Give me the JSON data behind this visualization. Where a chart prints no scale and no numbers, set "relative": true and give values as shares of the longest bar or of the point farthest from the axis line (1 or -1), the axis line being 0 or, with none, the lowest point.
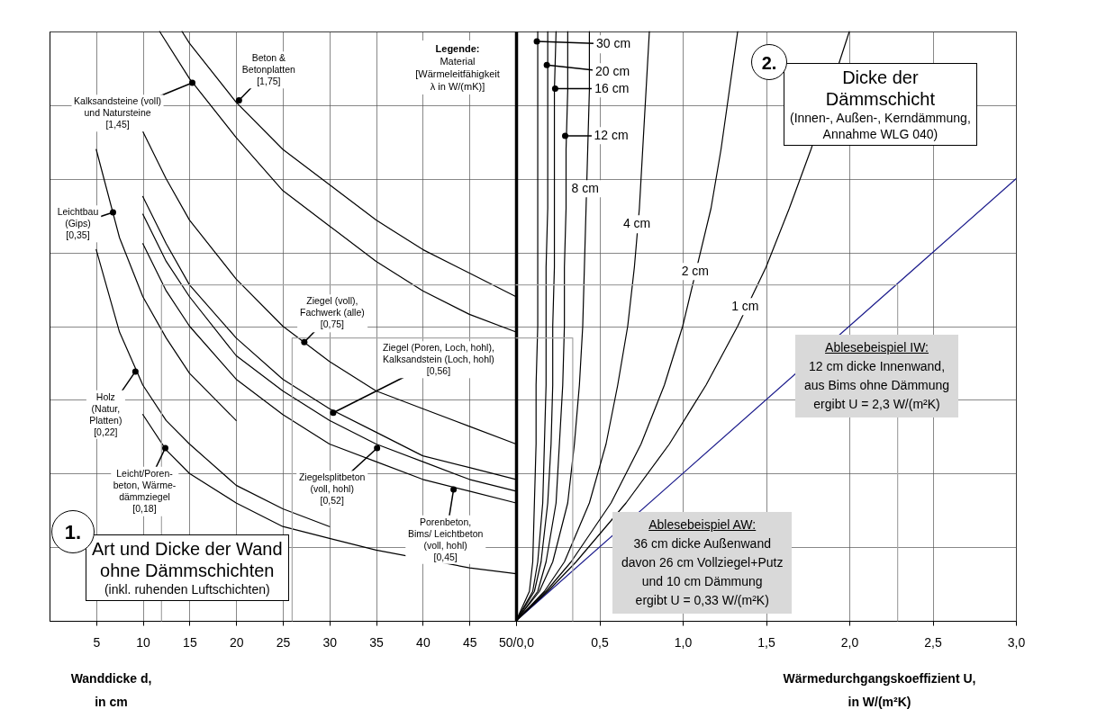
{
  "chart_data": [
    {
      "type": "line",
      "relative": true,
      "xlabel": "Wanddicke d,\nin cm",
      "xlim": [
        0,
        50
      ],
      "xticks": [
        5,
        10,
        15,
        20,
        25,
        30,
        35,
        40,
        45,
        {
          "value": 50,
          "label": "50/0,0"
        }
      ],
      "grid": true,
      "tick_labels": "x",
      "series": [
        {
          "color": "#000000",
          "x": [
            14.2,
            15,
            20,
            25,
            30,
            35,
            40,
            45,
            50
          ],
          "values": [
            1.0,
            0.98,
            0.88,
            0.8,
            0.74,
            0.68,
            0.63,
            0.59,
            0.55
          ]
        },
        {
          "color": "#000000",
          "x": [
            11.8,
            15,
            20,
            25,
            30,
            35,
            40,
            45,
            50
          ],
          "values": [
            1.0,
            0.92,
            0.82,
            0.73,
            0.67,
            0.61,
            0.56,
            0.52,
            0.49
          ]
        },
        {
          "color": "#000000",
          "x": [
            5,
            7.5,
            10,
            12.5,
            15,
            17.5,
            20
          ],
          "values": [
            0.8,
            0.65,
            0.55,
            0.48,
            0.42,
            0.38,
            0.34
          ]
        },
        {
          "color": "#000000",
          "x": [
            5,
            7.5,
            10,
            12.5,
            15,
            20,
            25,
            30
          ],
          "values": [
            0.63,
            0.49,
            0.4,
            0.34,
            0.3,
            0.23,
            0.19,
            0.16
          ]
        },
        {
          "color": "#000000",
          "x": [
            10,
            12.5,
            15,
            20,
            25,
            30,
            35,
            45,
            50
          ],
          "values": [
            0.35,
            0.29,
            0.25,
            0.2,
            0.16,
            0.14,
            0.12,
            0.09,
            0.08
          ]
        },
        {
          "color": "#000000",
          "x": [
            10,
            12.5,
            15,
            20,
            25,
            30,
            35,
            40,
            45,
            50
          ],
          "values": [
            0.83,
            0.75,
            0.68,
            0.58,
            0.5,
            0.44,
            0.39,
            0.36,
            0.33,
            0.3
          ]
        },
        {
          "color": "#000000",
          "x": [
            10,
            12.5,
            15,
            20,
            25,
            30,
            35,
            40,
            45,
            50
          ],
          "values": [
            0.72,
            0.64,
            0.57,
            0.48,
            0.41,
            0.36,
            0.32,
            0.28,
            0.26,
            0.24
          ]
        },
        {
          "color": "#000000",
          "x": [
            10,
            12.5,
            15,
            20,
            25,
            30,
            35,
            40,
            45,
            50
          ],
          "values": [
            0.69,
            0.61,
            0.55,
            0.45,
            0.39,
            0.34,
            0.3,
            0.27,
            0.24,
            0.22
          ]
        },
        {
          "color": "#000000",
          "x": [
            10,
            12.5,
            15,
            20,
            25,
            30,
            35,
            40,
            45,
            50
          ],
          "values": [
            0.64,
            0.56,
            0.5,
            0.41,
            0.35,
            0.3,
            0.27,
            0.24,
            0.22,
            0.2
          ]
        },
        {
          "color": "#a6a6a6",
          "x": [
            12,
            12,
            50
          ],
          "values": [
            0,
            0.57,
            0.57
          ]
        },
        {
          "color": "#a6a6a6",
          "x": [
            26,
            26,
            50
          ],
          "values": [
            0,
            0.48,
            0.48
          ]
        }
      ],
      "annotations": [
        {
          "text": "Beton &\nBetonplatten\n[1,75]",
          "x": 20.4,
          "y": 0.88
        },
        {
          "text": "Kalksandsteine (voll)\nund Natursteine\n[1,45]",
          "x": 15.4,
          "y": 0.91
        },
        {
          "text": "Leichtbau\n(Gips)\n[0,35]",
          "x": 6.9,
          "y": 0.69
        },
        {
          "text": "Holz\n(Natur,\nPlatten)\n[0,22]",
          "x": 9.3,
          "y": 0.42
        },
        {
          "text": "Leicht/Poren-\nbeton, Wärme-\ndämmziegel\n[0,18]",
          "x": 12.5,
          "y": 0.29
        },
        {
          "text": "Ziegel (voll),\nFachwerk (alle)\n[0,75]",
          "x": 27.4,
          "y": 0.47
        },
        {
          "text": "Ziegel (Poren, Loch, hohl),\nKalksandstein (Loch, hohl)\n[0,56]",
          "x": 30.5,
          "y": 0.35
        },
        {
          "text": "Ziegelsplitbeton\n(voll, hohl)\n[0,52]",
          "x": 35.2,
          "y": 0.29
        },
        {
          "text": "Porenbeton,\nBims/ Leichtbeton\n(voll, hohl)\n[0,45]",
          "x": 43.4,
          "y": 0.22
        },
        "Legende:\nMaterial\n[Wärmeleitfähigkeit\nλ in W/(mK)]",
        "1.",
        "Art und Dicke der Wand\nohne Dämmschichten\n(inkl. ruhenden Luftschichten)"
      ]
    },
    {
      "type": "line",
      "relative": true,
      "xlabel": "Wärmedurchgangskoeffizient U,\nin W/(m²K)",
      "xlim": [
        0,
        3
      ],
      "xticks": [
        {
          "value": 0,
          "label": null
        },
        {
          "value": 0.5,
          "label": "0,5"
        },
        {
          "value": 1,
          "label": "1,0"
        },
        {
          "value": 1.5,
          "label": "1,5"
        },
        {
          "value": 2,
          "label": "2,0"
        },
        {
          "value": 2.5,
          "label": "2,5"
        },
        {
          "value": 3,
          "label": "3,0"
        }
      ],
      "grid": true,
      "tick_labels": "x",
      "series": [
        {
          "color": "#1c1c8c",
          "x": [
            0,
            3
          ],
          "values": [
            0,
            0.75
          ]
        },
        {
          "color": "#000000",
          "x": [
            0,
            0.19,
            0.36,
            0.66,
            0.92,
            1.14,
            1.33,
            1.5,
            1.64,
            1.77,
            2.0
          ],
          "values": [
            0,
            0.05,
            0.1,
            0.2,
            0.3,
            0.4,
            0.5,
            0.6,
            0.7,
            0.8,
            1.0
          ]
        },
        {
          "color": "#000000",
          "x": [
            0,
            0.18,
            0.33,
            0.57,
            0.75,
            0.89,
            1.0,
            1.17,
            1.23,
            1.28,
            1.33
          ],
          "values": [
            0,
            0.05,
            0.1,
            0.2,
            0.3,
            0.4,
            0.5,
            0.7,
            0.8,
            0.9,
            1.0
          ]
        },
        {
          "color": "#000000",
          "x": [
            0,
            0.17,
            0.29,
            0.44,
            0.54,
            0.61,
            0.67,
            0.71,
            0.74,
            0.76,
            0.78,
            0.8
          ],
          "values": [
            0,
            0.05,
            0.1,
            0.2,
            0.3,
            0.4,
            0.5,
            0.6,
            0.7,
            0.8,
            0.9,
            1.0
          ]
        },
        {
          "color": "#000000",
          "x": [
            0,
            0.14,
            0.22,
            0.31,
            0.35,
            0.38,
            0.4,
            0.41,
            0.42,
            0.43,
            0.44,
            0.44
          ],
          "values": [
            0,
            0.05,
            0.1,
            0.2,
            0.3,
            0.4,
            0.5,
            0.6,
            0.7,
            0.8,
            0.9,
            1.0
          ]
        },
        {
          "color": "#000000",
          "x": [
            0,
            0.13,
            0.18,
            0.24,
            0.26,
            0.28,
            0.29,
            0.29,
            0.3,
            0.3,
            0.31,
            0.31
          ],
          "values": [
            0,
            0.05,
            0.1,
            0.2,
            0.3,
            0.4,
            0.5,
            0.6,
            0.7,
            0.8,
            0.9,
            1.0
          ]
        },
        {
          "color": "#000000",
          "x": [
            0,
            0.11,
            0.15,
            0.19,
            0.21,
            0.22,
            0.22,
            0.23,
            0.23,
            0.23,
            0.23,
            0.24
          ],
          "values": [
            0,
            0.05,
            0.1,
            0.2,
            0.3,
            0.4,
            0.5,
            0.6,
            0.7,
            0.8,
            0.9,
            1.0
          ]
        },
        {
          "color": "#000000",
          "x": [
            0,
            0.1,
            0.13,
            0.16,
            0.17,
            0.18,
            0.18,
            0.18,
            0.19,
            0.19,
            0.19,
            0.19
          ],
          "values": [
            0,
            0.05,
            0.1,
            0.2,
            0.3,
            0.4,
            0.5,
            0.6,
            0.7,
            0.8,
            0.9,
            1.0
          ]
        },
        {
          "color": "#000000",
          "x": [
            0,
            0.08,
            0.1,
            0.11,
            0.12,
            0.12,
            0.13,
            0.13,
            0.13,
            0.13,
            0.13,
            0.13
          ],
          "values": [
            0,
            0.05,
            0.1,
            0.2,
            0.3,
            0.4,
            0.5,
            0.6,
            0.7,
            0.8,
            0.9,
            1.0
          ]
        },
        {
          "color": "#a6a6a6",
          "x": [
            0,
            2.29,
            2.29
          ],
          "values": [
            0.57,
            0.57,
            0
          ]
        },
        {
          "color": "#a6a6a6",
          "x": [
            0,
            0.34,
            0.34
          ],
          "values": [
            0.48,
            0.48,
            0
          ]
        }
      ],
      "annotations": [
        {
          "text": "30 cm",
          "x": 0.13,
          "y": 0.98
        },
        {
          "text": "20 cm",
          "x": 0.19,
          "y": 0.94
        },
        {
          "text": "16 cm",
          "x": 0.24,
          "y": 0.9
        },
        {
          "text": "12 cm",
          "x": 0.3,
          "y": 0.82
        },
        {
          "text": "8 cm",
          "x": 0.42,
          "y": 0.73
        },
        {
          "text": "4 cm",
          "x": 0.73,
          "y": 0.67
        },
        {
          "text": "2 cm",
          "x": 1.08,
          "y": 0.59
        },
        {
          "text": "1 cm",
          "x": 1.38,
          "y": 0.53
        },
        "2.",
        "Dicke der\nDämmschicht\n(Innen-, Außen-, Kerndämmung,\nAnnahme WLG 040)",
        "Ablesebeispiel IW:\n12 cm dicke Innenwand,\naus Bims ohne Dämmung\nergibt U = 2,3 W/(m²K)",
        "Ablesebeispiel AW:\n36 cm dicke Außenwand\ndavon 26 cm Vollziegel+Putz\nund 10 cm Dämmung\nergibt U = 0,33 W/(m²K)"
      ]
    }
  ]
}
